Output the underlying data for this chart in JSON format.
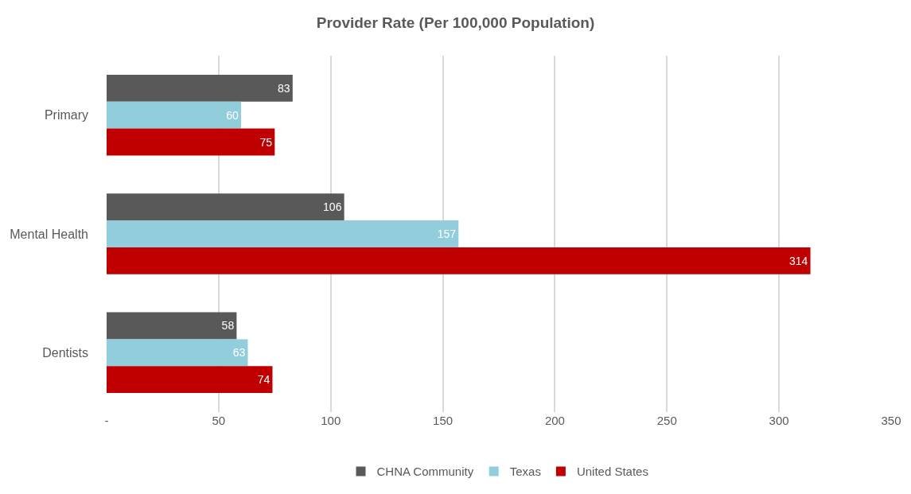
{
  "chart_data": {
    "type": "bar",
    "orientation": "horizontal",
    "title": "Provider Rate (Per 100,000 Population)",
    "categories": [
      "Primary",
      "Mental Health",
      "Dentists"
    ],
    "series": [
      {
        "name": "CHNA Community",
        "color": "#595959",
        "values": [
          83,
          106,
          58
        ]
      },
      {
        "name": "Texas",
        "color": "#92cddc",
        "values": [
          60,
          157,
          63
        ]
      },
      {
        "name": "United States",
        "color": "#c00000",
        "values": [
          75,
          314,
          74
        ]
      }
    ],
    "xlim": [
      0,
      350
    ],
    "xticks": [
      {
        "value": 0,
        "label": "-"
      },
      50,
      100,
      150,
      200,
      250,
      300,
      350
    ],
    "data_labels": true,
    "grid": "x",
    "legend": "bottom"
  }
}
